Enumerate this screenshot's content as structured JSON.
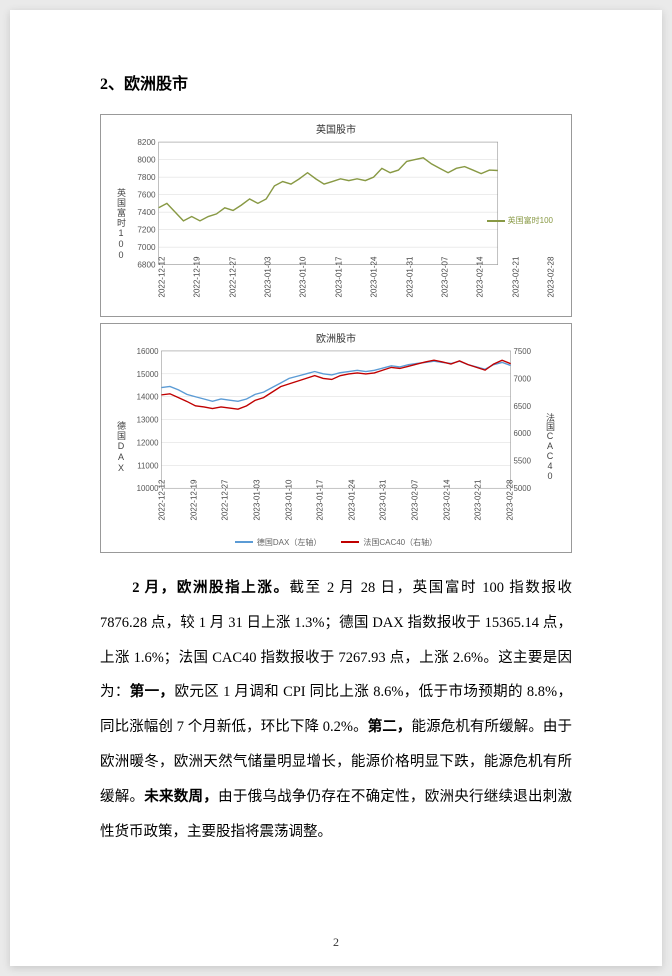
{
  "section_title": "2、欧洲股市",
  "chart1": {
    "title": "英国股市",
    "y_label": "英国富时100",
    "legend_label": "英国富时100",
    "y_ticks": [
      6800,
      7000,
      7200,
      7400,
      7600,
      7800,
      8000,
      8200
    ],
    "ylim": [
      6800,
      8200
    ],
    "x_ticks": [
      "2022-12-12",
      "2022-12-19",
      "2022-12-27",
      "2023-01-03",
      "2023-01-10",
      "2023-01-17",
      "2023-01-24",
      "2023-01-31",
      "2023-02-07",
      "2023-02-14",
      "2023-02-21",
      "2023-02-28"
    ],
    "line_color": "#889944",
    "grid_color": "#d9d9d9",
    "values": [
      7450,
      7500,
      7400,
      7300,
      7350,
      7300,
      7350,
      7380,
      7450,
      7420,
      7480,
      7550,
      7500,
      7550,
      7700,
      7750,
      7720,
      7780,
      7850,
      7780,
      7720,
      7750,
      7780,
      7760,
      7780,
      7760,
      7800,
      7900,
      7850,
      7880,
      7980,
      8000,
      8020,
      7950,
      7900,
      7850,
      7900,
      7920,
      7880,
      7840,
      7880,
      7876
    ]
  },
  "chart2": {
    "title": "欧洲股市",
    "y_label_left": "德国DAX",
    "y_label_right": "法国CAC40",
    "legend_left": "德国DAX（左轴）",
    "legend_right": "法国CAC40（右轴）",
    "left_ticks": [
      10000,
      11000,
      12000,
      13000,
      14000,
      15000,
      16000
    ],
    "left_ylim": [
      10000,
      16000
    ],
    "right_ticks": [
      5000,
      5500,
      6000,
      6500,
      7000,
      7500
    ],
    "right_ylim": [
      5000,
      7500
    ],
    "x_ticks": [
      "2022-12-12",
      "2022-12-19",
      "2022-12-27",
      "2023-01-03",
      "2023-01-10",
      "2023-01-17",
      "2023-01-24",
      "2023-01-31",
      "2023-02-07",
      "2023-02-14",
      "2023-02-21",
      "2023-02-28"
    ],
    "grid_color": "#d9d9d9",
    "line_left_color": "#5b9bd5",
    "line_right_color": "#c00000",
    "values_left": [
      14400,
      14450,
      14300,
      14100,
      14000,
      13900,
      13800,
      13900,
      13850,
      13800,
      13900,
      14100,
      14200,
      14400,
      14600,
      14800,
      14900,
      15000,
      15100,
      15000,
      14950,
      15050,
      15100,
      15150,
      15100,
      15150,
      15250,
      15350,
      15300,
      15400,
      15450,
      15500,
      15550,
      15500,
      15450,
      15550,
      15400,
      15300,
      15200,
      15400,
      15500,
      15365
    ],
    "values_right": [
      6700,
      6720,
      6650,
      6580,
      6500,
      6480,
      6450,
      6480,
      6460,
      6440,
      6500,
      6600,
      6650,
      6750,
      6850,
      6900,
      6950,
      7000,
      7050,
      7000,
      6980,
      7050,
      7080,
      7100,
      7080,
      7100,
      7150,
      7200,
      7180,
      7220,
      7260,
      7300,
      7330,
      7300,
      7260,
      7320,
      7250,
      7200,
      7150,
      7260,
      7330,
      7268
    ]
  },
  "paragraph": {
    "p1a": "2 月，欧洲股指上涨。",
    "p1b": "截至 2 月 28 日，英国富时 100 指数报收 7876.28 点，较 1 月 31 日上涨 1.3%；德国 DAX 指数报收于 15365.14 点，上涨 1.6%；法国 CAC40 指数报收于 7267.93 点，上涨 2.6%。这主要是因为：",
    "p1c": "第一，",
    "p1d": "欧元区 1 月调和 CPI 同比上涨 8.6%，低于市场预期的 8.8%，同比涨幅创 7 个月新低，环比下降 0.2%。",
    "p1e": "第二，",
    "p1f": "能源危机有所缓解。由于欧洲暖冬，欧洲天然气储量明显增长，能源价格明显下跌，能源危机有所缓解。",
    "p1g": "未来数周，",
    "p1h": "由于俄乌战争仍存在不确定性，欧洲央行继续退出刺激性货币政策，主要股指将震荡调整。"
  },
  "page_number": "2"
}
